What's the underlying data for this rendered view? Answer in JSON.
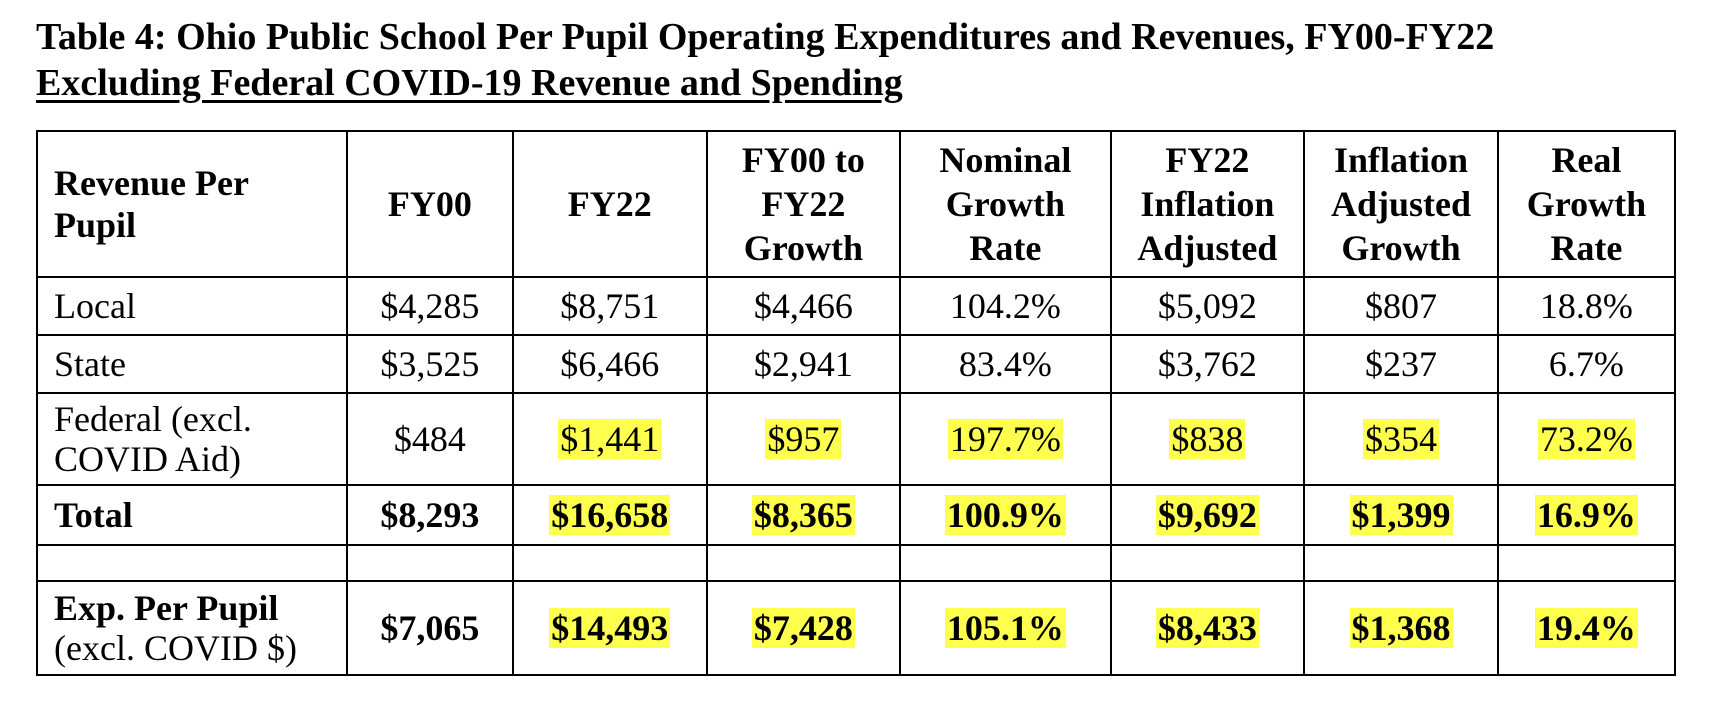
{
  "title": "Table 4:  Ohio Public School Per Pupil Operating Expenditures and Revenues, FY00-FY22",
  "subtitle": "Excluding Federal COVID-19 Revenue and Spending",
  "header": {
    "row_label": [
      "Revenue Per",
      "Pupil"
    ],
    "columns": [
      [
        "FY00"
      ],
      [
        "FY22"
      ],
      [
        "FY00 to",
        "FY22",
        "Growth"
      ],
      [
        "Nominal",
        "Growth",
        "Rate"
      ],
      [
        "FY22",
        "Inflation",
        "Adjusted"
      ],
      [
        "Inflation",
        "Adjusted",
        "Growth"
      ],
      [
        "Real",
        "Growth",
        "Rate"
      ]
    ]
  },
  "rows": [
    {
      "label": [
        "Local"
      ],
      "values": [
        "$4,285",
        "$8,751",
        "$4,466",
        "104.2%",
        "$5,092",
        "$807",
        "18.8%"
      ]
    },
    {
      "label": [
        "State"
      ],
      "values": [
        "$3,525",
        "$6,466",
        "$2,941",
        "83.4%",
        "$3,762",
        "$237",
        "6.7%"
      ]
    },
    {
      "label": [
        "Federal (excl.",
        "COVID Aid)"
      ],
      "values": [
        "$484",
        "$1,441",
        "$957",
        "197.7%",
        "$838",
        "$354",
        "73.2%"
      ]
    },
    {
      "label": [
        "Total"
      ],
      "values": [
        "$8,293",
        "$16,658",
        "$8,365",
        "100.9%",
        "$9,692",
        "$1,399",
        "16.9%"
      ]
    },
    {
      "label": [
        "Exp. Per Pupil",
        "(excl. COVID $)"
      ],
      "values": [
        "$7,065",
        "$14,493",
        "$7,428",
        "105.1%",
        "$8,433",
        "$1,368",
        "19.4%"
      ]
    }
  ],
  "highlight_color": "#ffff4d"
}
